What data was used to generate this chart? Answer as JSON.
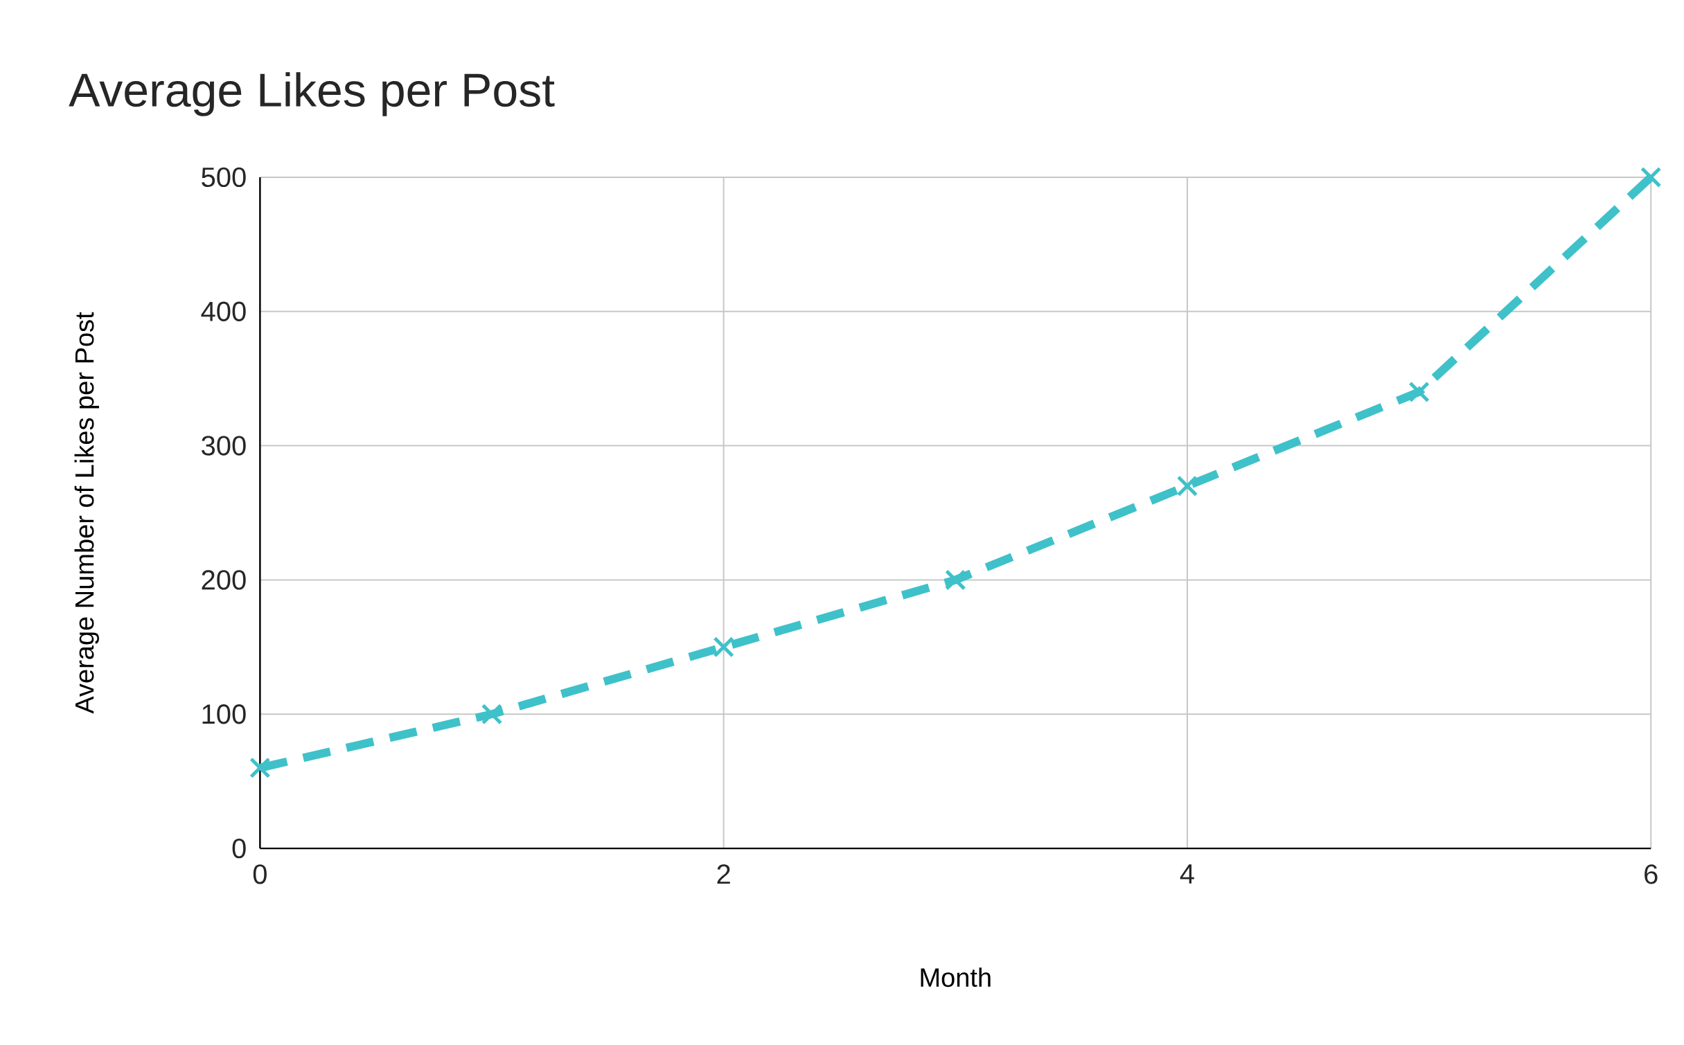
{
  "chart_data": {
    "type": "line",
    "title": "Average Likes per Post",
    "xlabel": "Month",
    "ylabel": "Average Number of Likes per Post",
    "x": [
      0,
      1,
      2,
      3,
      4,
      5,
      6
    ],
    "series": [
      {
        "color": "#3fc1c9",
        "values": [
          60,
          100,
          150,
          200,
          270,
          340,
          500
        ]
      }
    ],
    "xlim": [
      0,
      6
    ],
    "xticks": [
      0,
      2,
      4,
      6
    ],
    "ylim": [
      0,
      500
    ],
    "yticks": [
      0,
      100,
      200,
      300,
      400,
      500
    ],
    "grid": true,
    "marker": "cross",
    "line_style": "dashed"
  }
}
